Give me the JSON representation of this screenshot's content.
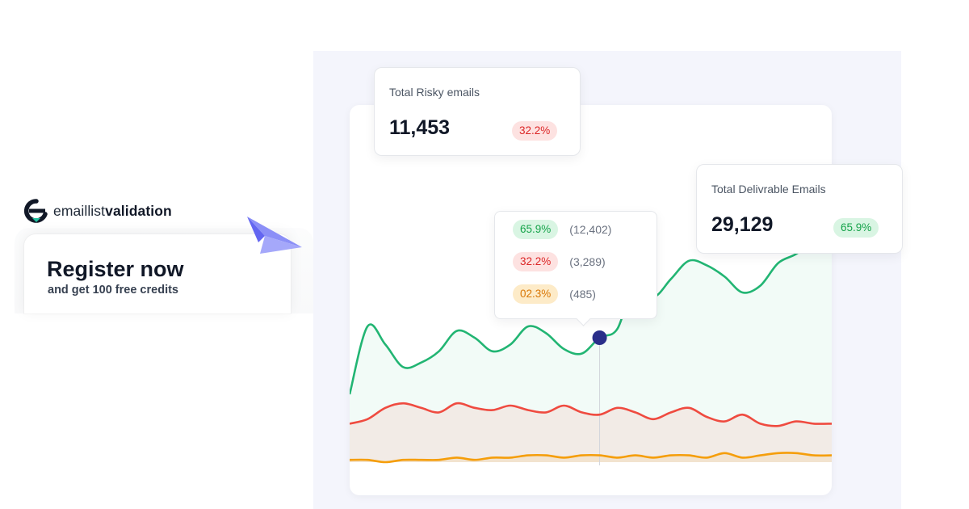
{
  "brand": {
    "name_light": "emaillist",
    "name_bold": "validation"
  },
  "promo": {
    "title": "Register now",
    "subtitle": "and get 100 free credits"
  },
  "stats": {
    "risky": {
      "label": "Total Risky emails",
      "value": "11,453",
      "percent": "32.2%"
    },
    "deliverable": {
      "label": "Total Delivrable Emails",
      "value": "29,129",
      "percent": "65.9%"
    }
  },
  "tooltip": {
    "rows": [
      {
        "percent": "65.9%",
        "count": "(12,402)",
        "color": "green"
      },
      {
        "percent": "32.2%",
        "count": "(3,289)",
        "color": "red"
      },
      {
        "percent": "02.3%",
        "count": "(485)",
        "color": "orange"
      }
    ]
  },
  "colors": {
    "green": "#22b573",
    "red": "#ef4b40",
    "orange": "#f59e0b",
    "marker": "#2a2f8a",
    "accent_purple": "#7b7ef5"
  },
  "chart_data": {
    "type": "area",
    "title": "",
    "xlabel": "",
    "ylabel": "",
    "series": [
      {
        "values": [
          30,
          60,
          52,
          42,
          44,
          49,
          58,
          55,
          49,
          52,
          60,
          57,
          50,
          48,
          55,
          59,
          80,
          73,
          81,
          89,
          87,
          82,
          75,
          78,
          88,
          92,
          98,
          110
        ]
      },
      {
        "values": [
          17,
          19,
          24,
          26,
          24,
          22,
          26,
          24,
          23,
          25,
          23,
          22,
          25,
          22,
          21,
          24,
          22,
          19,
          22,
          24,
          20,
          18,
          21,
          17,
          16,
          18,
          17,
          17
        ]
      },
      {
        "values": [
          1,
          1,
          0,
          1,
          1,
          1,
          2,
          1,
          2,
          2,
          3,
          3,
          2,
          3,
          3,
          2,
          3,
          2,
          3,
          3,
          2,
          4,
          2,
          3,
          4,
          4,
          3,
          3
        ]
      }
    ],
    "highlight_index": 14
  }
}
